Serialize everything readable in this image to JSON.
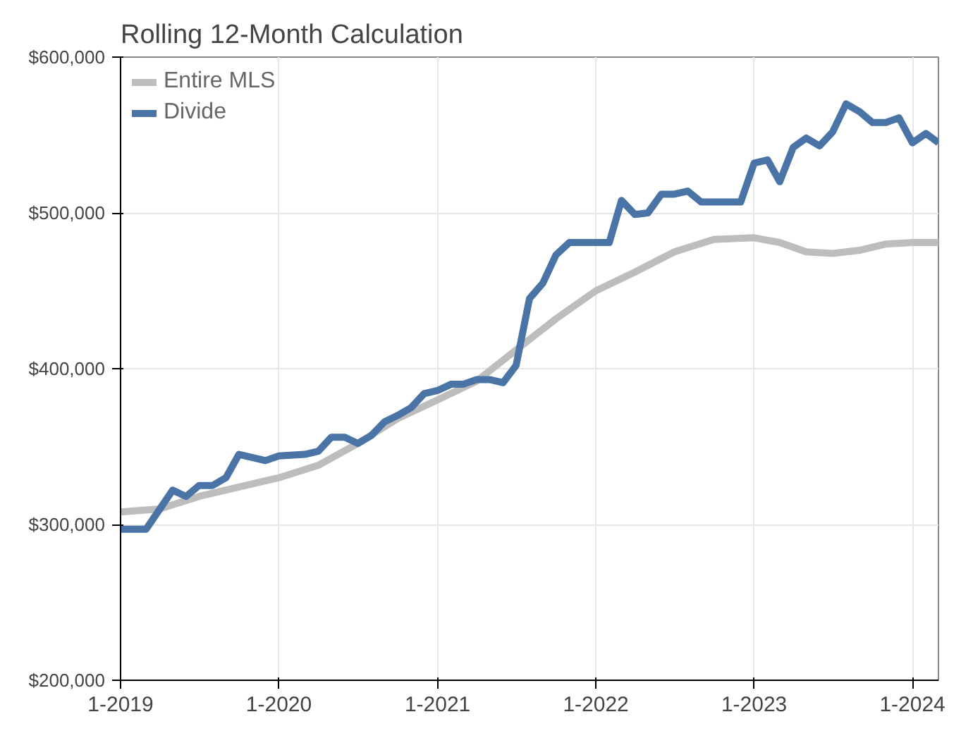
{
  "chart_data": {
    "type": "line",
    "title": "Rolling 12-Month Calculation",
    "series": [
      {
        "name": "Entire MLS",
        "color": "#bdbdbd",
        "x": [
          "2019-01",
          "2019-04",
          "2019-07",
          "2019-10",
          "2020-01",
          "2020-04",
          "2020-07",
          "2020-10",
          "2021-01",
          "2021-04",
          "2021-07",
          "2021-10",
          "2022-01",
          "2022-04",
          "2022-07",
          "2022-10",
          "2023-01",
          "2023-03",
          "2023-05",
          "2023-07",
          "2023-09",
          "2023-11",
          "2024-01",
          "2024-03"
        ],
        "values": [
          308000,
          310000,
          318000,
          324000,
          330000,
          338000,
          352000,
          368000,
          380000,
          392000,
          412000,
          432000,
          450000,
          462000,
          475000,
          483000,
          484000,
          481000,
          475000,
          474000,
          476000,
          480000,
          481000,
          481000
        ]
      },
      {
        "name": "Divide",
        "color": "#4a73a6",
        "x": [
          "2019-01",
          "2019-03",
          "2019-05",
          "2019-06",
          "2019-07",
          "2019-08",
          "2019-09",
          "2019-10",
          "2019-12",
          "2020-01",
          "2020-03",
          "2020-04",
          "2020-05",
          "2020-06",
          "2020-07",
          "2020-08",
          "2020-09",
          "2020-10",
          "2020-11",
          "2020-12",
          "2021-01",
          "2021-02",
          "2021-03",
          "2021-04",
          "2021-05",
          "2021-06",
          "2021-07",
          "2021-08",
          "2021-09",
          "2021-10",
          "2021-11",
          "2022-01",
          "2022-02",
          "2022-03",
          "2022-04",
          "2022-05",
          "2022-06",
          "2022-07",
          "2022-08",
          "2022-09",
          "2022-12",
          "2023-01",
          "2023-02",
          "2023-03",
          "2023-04",
          "2023-05",
          "2023-06",
          "2023-07",
          "2023-08",
          "2023-09",
          "2023-10",
          "2023-11",
          "2023-12",
          "2024-01",
          "2024-02",
          "2024-03"
        ],
        "values": [
          297000,
          297000,
          322000,
          318000,
          325000,
          325000,
          330000,
          345000,
          341000,
          344000,
          345000,
          347000,
          356000,
          356000,
          352000,
          357000,
          366000,
          370000,
          375000,
          384000,
          386000,
          390000,
          390000,
          393000,
          393000,
          391000,
          402000,
          445000,
          455000,
          473000,
          481000,
          481000,
          481000,
          508000,
          499000,
          500000,
          512000,
          512000,
          514000,
          507000,
          507000,
          532000,
          534000,
          520000,
          542000,
          548000,
          543000,
          552000,
          570000,
          565000,
          558000,
          558000,
          561000,
          545000,
          551000,
          545000
        ]
      }
    ],
    "xlim": [
      "2019-01",
      "2024-03"
    ],
    "xticks": [
      {
        "value": "2019-01",
        "label": "1-2019"
      },
      {
        "value": "2020-01",
        "label": "1-2020"
      },
      {
        "value": "2021-01",
        "label": "1-2021"
      },
      {
        "value": "2022-01",
        "label": "1-2022"
      },
      {
        "value": "2023-01",
        "label": "1-2023"
      },
      {
        "value": "2024-01",
        "label": "1-2024"
      }
    ],
    "ylim": [
      200000,
      600000
    ],
    "yticks": [
      {
        "value": 200000,
        "label": "$200,000"
      },
      {
        "value": 300000,
        "label": "$300,000"
      },
      {
        "value": 400000,
        "label": "$400,000"
      },
      {
        "value": 500000,
        "label": "$500,000"
      },
      {
        "value": 600000,
        "label": "$600,000"
      }
    ],
    "grid": true,
    "legend": "top left",
    "marker": "none",
    "line_style": "solid"
  }
}
